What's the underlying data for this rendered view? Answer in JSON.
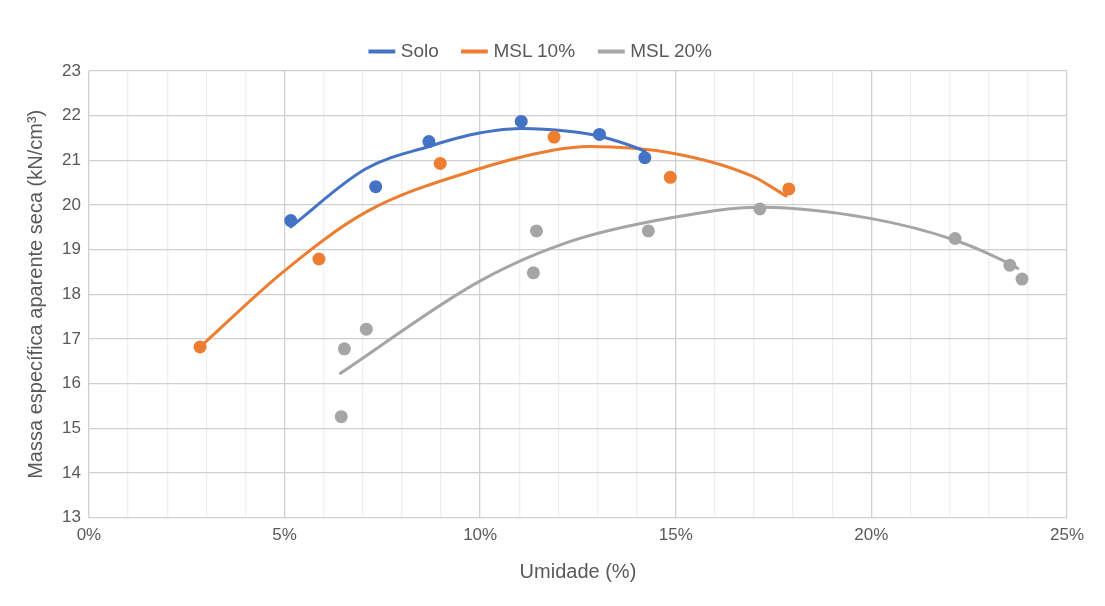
{
  "chart_data": {
    "type": "scatter",
    "xlabel": "Umidade (%)",
    "ylabel": "Massa específica aparente seca (kN/cm³)",
    "legend": "top",
    "grid": true,
    "xlim": [
      0,
      25
    ],
    "ylim": [
      13,
      23
    ],
    "xticks": [
      {
        "value": 0,
        "label": "0%"
      },
      {
        "value": 1,
        "label": null
      },
      {
        "value": 2,
        "label": null
      },
      {
        "value": 3,
        "label": null
      },
      {
        "value": 4,
        "label": null
      },
      {
        "value": 5,
        "label": "5%"
      },
      {
        "value": 6,
        "label": null
      },
      {
        "value": 7,
        "label": null
      },
      {
        "value": 8,
        "label": null
      },
      {
        "value": 9,
        "label": null
      },
      {
        "value": 10,
        "label": "10%"
      },
      {
        "value": 11,
        "label": null
      },
      {
        "value": 12,
        "label": null
      },
      {
        "value": 13,
        "label": null
      },
      {
        "value": 14,
        "label": null
      },
      {
        "value": 15,
        "label": "15%"
      },
      {
        "value": 16,
        "label": null
      },
      {
        "value": 17,
        "label": null
      },
      {
        "value": 18,
        "label": null
      },
      {
        "value": 19,
        "label": null
      },
      {
        "value": 20,
        "label": "20%"
      },
      {
        "value": 21,
        "label": null
      },
      {
        "value": 22,
        "label": null
      },
      {
        "value": 23,
        "label": null
      },
      {
        "value": 24,
        "label": null
      },
      {
        "value": 25,
        "label": "25%"
      }
    ],
    "yticks": [
      13,
      14,
      15,
      16,
      17,
      18,
      19,
      20,
      21,
      22,
      23
    ],
    "series": [
      {
        "type": "scatter",
        "marker": "circle",
        "color": "#4472c4",
        "x": [
          5.16,
          7.33,
          8.69,
          11.05,
          13.05,
          14.21
        ],
        "values": [
          19.65,
          20.41,
          21.42,
          21.87,
          21.58,
          21.06
        ]
      },
      {
        "type": "scatter",
        "marker": "circle",
        "color": "#ed7d31",
        "x": [
          2.84,
          5.88,
          8.98,
          11.89,
          14.86,
          17.89
        ],
        "values": [
          16.82,
          18.79,
          20.93,
          21.52,
          20.62,
          20.36
        ]
      },
      {
        "type": "scatter",
        "marker": "circle",
        "color": "#a5a5a5",
        "x": [
          6.45,
          6.53,
          7.09,
          11.36,
          11.44,
          14.3,
          17.15,
          22.14,
          23.54,
          23.85
        ],
        "values": [
          15.26,
          16.78,
          17.22,
          18.48,
          19.42,
          19.42,
          19.91,
          19.25,
          18.65,
          18.34
        ]
      },
      {
        "type": "line",
        "name": "Solo",
        "marker": "none",
        "line_style": "solid",
        "color": "#4472c4",
        "x": [
          5.16,
          7.08,
          8.69,
          9.98,
          11.05,
          12.25,
          13.05,
          14.03,
          14.21
        ],
        "values": [
          19.51,
          20.81,
          21.31,
          21.61,
          21.71,
          21.65,
          21.54,
          21.27,
          21.2
        ]
      },
      {
        "type": "line",
        "name": "MSL 10%",
        "marker": "none",
        "line_style": "solid",
        "color": "#ed7d31",
        "x": [
          2.84,
          4.99,
          7.08,
          9.98,
          11.89,
          12.78,
          14.92,
          16.97,
          17.82
        ],
        "values": [
          16.82,
          18.52,
          19.84,
          20.81,
          21.23,
          21.31,
          21.16,
          20.64,
          20.2
        ]
      },
      {
        "type": "line",
        "name": "MSL 20%",
        "marker": "none",
        "line_style": "solid",
        "color": "#a5a5a5",
        "x": [
          6.43,
          9.98,
          12.25,
          14.92,
          17.15,
          19.97,
          22.14,
          23.56,
          23.74
        ],
        "values": [
          16.23,
          18.29,
          19.17,
          19.72,
          19.95,
          19.7,
          19.21,
          18.67,
          18.58
        ]
      }
    ]
  }
}
